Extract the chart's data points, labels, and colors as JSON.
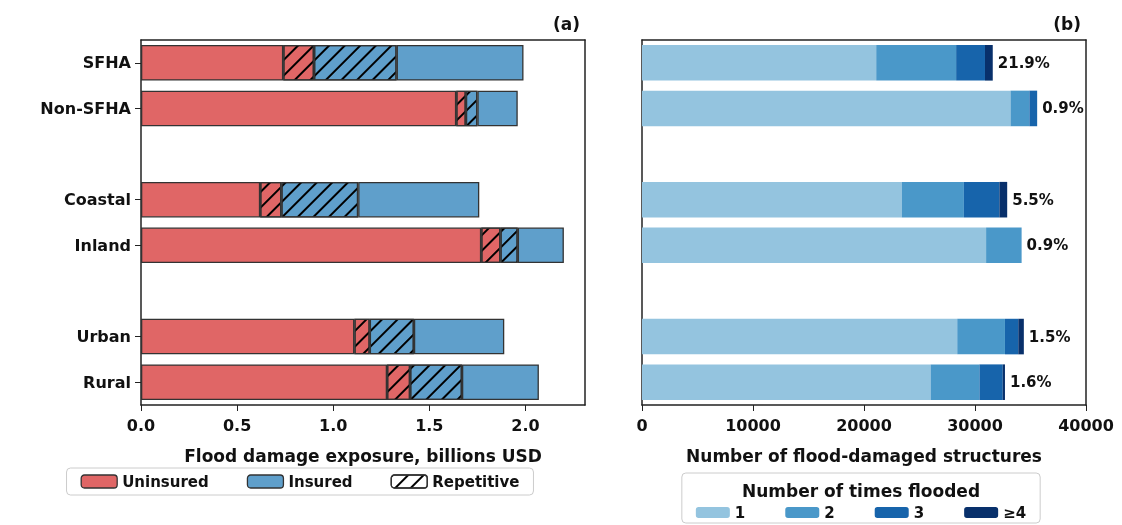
{
  "chart_data": [
    {
      "type": "bar",
      "title": "(a)",
      "xlabel": "Flood damage exposure, billions USD",
      "orientation": "horizontal",
      "stacked": true,
      "categories": [
        "SFHA",
        "Non-SFHA",
        null,
        "Coastal",
        "Inland",
        null,
        "Urban",
        "Rural"
      ],
      "series": [
        {
          "name": "Uninsured",
          "color": "#e06666",
          "values": [
            0.74,
            1.64,
            null,
            0.62,
            1.77,
            null,
            1.11,
            1.28
          ]
        },
        {
          "color": "#e06666",
          "values": [
            0.16,
            0.05,
            null,
            0.11,
            0.1,
            null,
            0.08,
            0.12
          ]
        },
        {
          "color": "#5f9fcb",
          "values": [
            0.43,
            0.06,
            null,
            0.4,
            0.09,
            null,
            0.23,
            0.27
          ]
        },
        {
          "name": "Insured",
          "color": "#5f9fcb",
          "values": [
            0.66,
            0.21,
            null,
            0.63,
            0.24,
            null,
            0.47,
            0.4
          ]
        },
        {
          "name": "Repetitive",
          "color": "#ffffff",
          "values": [
            null,
            null,
            null,
            null,
            null,
            null,
            null,
            null
          ]
        }
      ],
      "xlim": [
        0,
        2.31
      ],
      "xticks": [
        {
          "value": 0,
          "label": "0.0"
        },
        0.5,
        {
          "value": 1,
          "label": "1.0"
        },
        1.5,
        {
          "value": 2,
          "label": "2.0"
        }
      ],
      "grid": false,
      "legend": "bottom"
    },
    {
      "type": "bar",
      "title": "(b)",
      "xlabel": "Number of flood-damaged structures",
      "legend_title": "Number of times flooded",
      "orientation": "horizontal",
      "stacked": true,
      "tick_labels": "x",
      "categories": [
        null,
        null,
        null,
        null,
        null,
        null,
        null,
        null
      ],
      "series": [
        {
          "name": "1",
          "color": "#94c4df",
          "values": [
            21100,
            33200,
            null,
            23400,
            31000,
            null,
            28400,
            26000
          ]
        },
        {
          "name": "2",
          "color": "#4a98c9",
          "values": [
            7200,
            1700,
            null,
            5600,
            3200,
            null,
            4300,
            4400
          ]
        },
        {
          "name": "3",
          "color": "#1764ab",
          "values": [
            2600,
            700,
            null,
            3200,
            0,
            null,
            1200,
            2100
          ]
        },
        {
          "name": "≥4",
          "color": "#08306b",
          "values": [
            700,
            0,
            null,
            700,
            0,
            null,
            500,
            200
          ]
        }
      ],
      "annotations": [
        {
          "text": "21.9%",
          "x": 31600
        },
        {
          "text": "0.9%",
          "x": 35600
        },
        {
          "text": "5.5%",
          "x": 32900
        },
        {
          "text": "0.9%",
          "x": 34200
        },
        {
          "text": "1.5%",
          "x": 34400
        },
        {
          "text": "1.6%",
          "x": 32700
        }
      ],
      "xlim": [
        0,
        40000
      ],
      "xticks": [
        0,
        10000,
        20000,
        30000,
        40000
      ],
      "grid": false,
      "legend": "bottom"
    }
  ]
}
